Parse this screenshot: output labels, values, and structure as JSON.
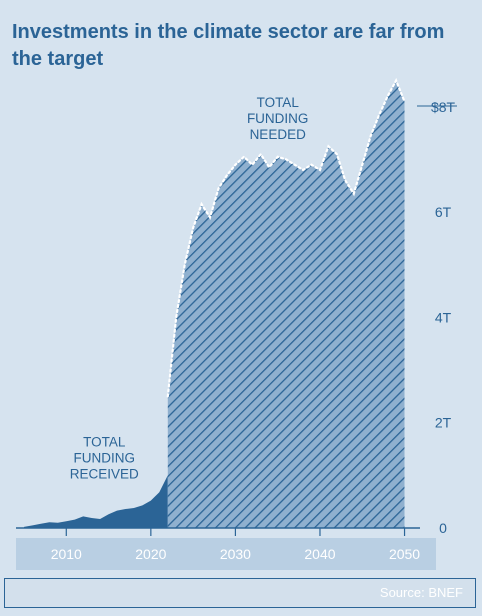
{
  "title": "Investments in the climate sector are far from the target",
  "source": "Source: BNEF",
  "colors": {
    "background": "#d6e3ef",
    "accent": "#2b6496",
    "received_fill": "#2b6496",
    "needed_fill": "#8fb0cf",
    "dotted_line": "#ffffff",
    "x_axis_band": "#b9cfe3"
  },
  "chart_data": {
    "type": "area",
    "title": "Investments in the climate sector are far from the target",
    "xlabel": "",
    "ylabel": "",
    "xlim": [
      2005,
      2051
    ],
    "ylim": [
      0,
      8.3
    ],
    "x_ticks": [
      2010,
      2020,
      2030,
      2040,
      2050
    ],
    "x_tick_labels": [
      "2010",
      "2020",
      "2030",
      "2040",
      "2050"
    ],
    "y_ticks": [
      0,
      2,
      4,
      6,
      8
    ],
    "y_tick_labels": [
      "0",
      "2T",
      "4T",
      "6T",
      "$8T"
    ],
    "grid": false,
    "legend": "none",
    "series": [
      {
        "name": "TOTAL FUNDING RECEIVED",
        "x": [
          2005,
          2006,
          2007,
          2008,
          2009,
          2010,
          2011,
          2012,
          2013,
          2014,
          2015,
          2016,
          2017,
          2018,
          2019,
          2020,
          2021,
          2022
        ],
        "values": [
          0.02,
          0.05,
          0.08,
          0.11,
          0.1,
          0.13,
          0.16,
          0.22,
          0.19,
          0.17,
          0.26,
          0.33,
          0.36,
          0.38,
          0.43,
          0.52,
          0.68,
          1.0
        ]
      },
      {
        "name": "TOTAL FUNDING NEEDED",
        "x": [
          2022,
          2023,
          2024,
          2025,
          2026,
          2027,
          2028,
          2029,
          2030,
          2031,
          2032,
          2033,
          2034,
          2035,
          2036,
          2037,
          2038,
          2039,
          2040,
          2041,
          2042,
          2043,
          2044,
          2045,
          2046,
          2047,
          2048,
          2049,
          2050
        ],
        "values": [
          2.5,
          4.0,
          5.0,
          5.7,
          6.15,
          5.9,
          6.45,
          6.7,
          6.9,
          7.05,
          6.9,
          7.1,
          6.85,
          7.05,
          7.0,
          6.9,
          6.8,
          6.9,
          6.8,
          7.25,
          7.1,
          6.6,
          6.35,
          6.9,
          7.45,
          7.85,
          8.2,
          8.5,
          8.1
        ]
      }
    ],
    "annotations": [
      {
        "text": [
          "TOTAL",
          "FUNDING",
          "NEEDED"
        ],
        "x": 2035,
        "y": 8.0
      },
      {
        "text": [
          "TOTAL",
          "FUNDING",
          "RECEIVED"
        ],
        "x": 2014.5,
        "y": 1.55
      }
    ]
  }
}
